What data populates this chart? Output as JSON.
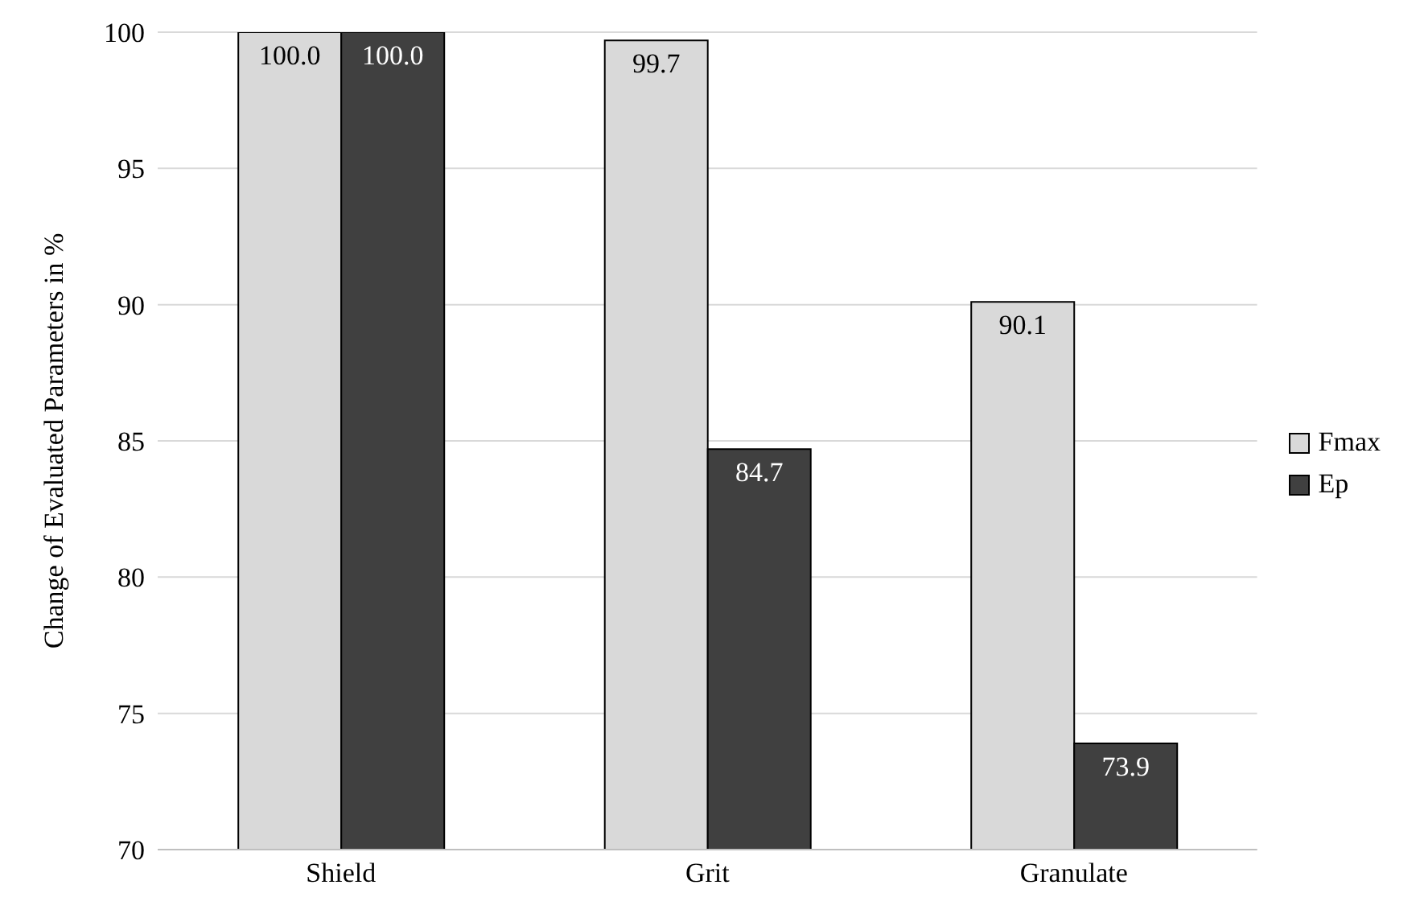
{
  "chart_data": {
    "type": "bar",
    "ylabel": "Change of Evaluated Parameters in %",
    "categories": [
      "Shield",
      "Grit",
      "Granulate"
    ],
    "series": [
      {
        "name": "Fmax",
        "color": "#d9d9d9",
        "values": [
          100,
          99.7,
          90.1
        ],
        "value_labels": [
          "100.0",
          "99.7",
          "90.1"
        ]
      },
      {
        "name": "Ep",
        "color": "#404040",
        "values": [
          100,
          84.7,
          73.9
        ],
        "value_labels": [
          "100.0",
          "84.7",
          "73.9"
        ]
      }
    ],
    "ylim": [
      70,
      100
    ],
    "yticks": [
      70,
      75,
      80,
      85,
      90,
      95,
      100
    ],
    "grid": "y",
    "legend": "right"
  }
}
